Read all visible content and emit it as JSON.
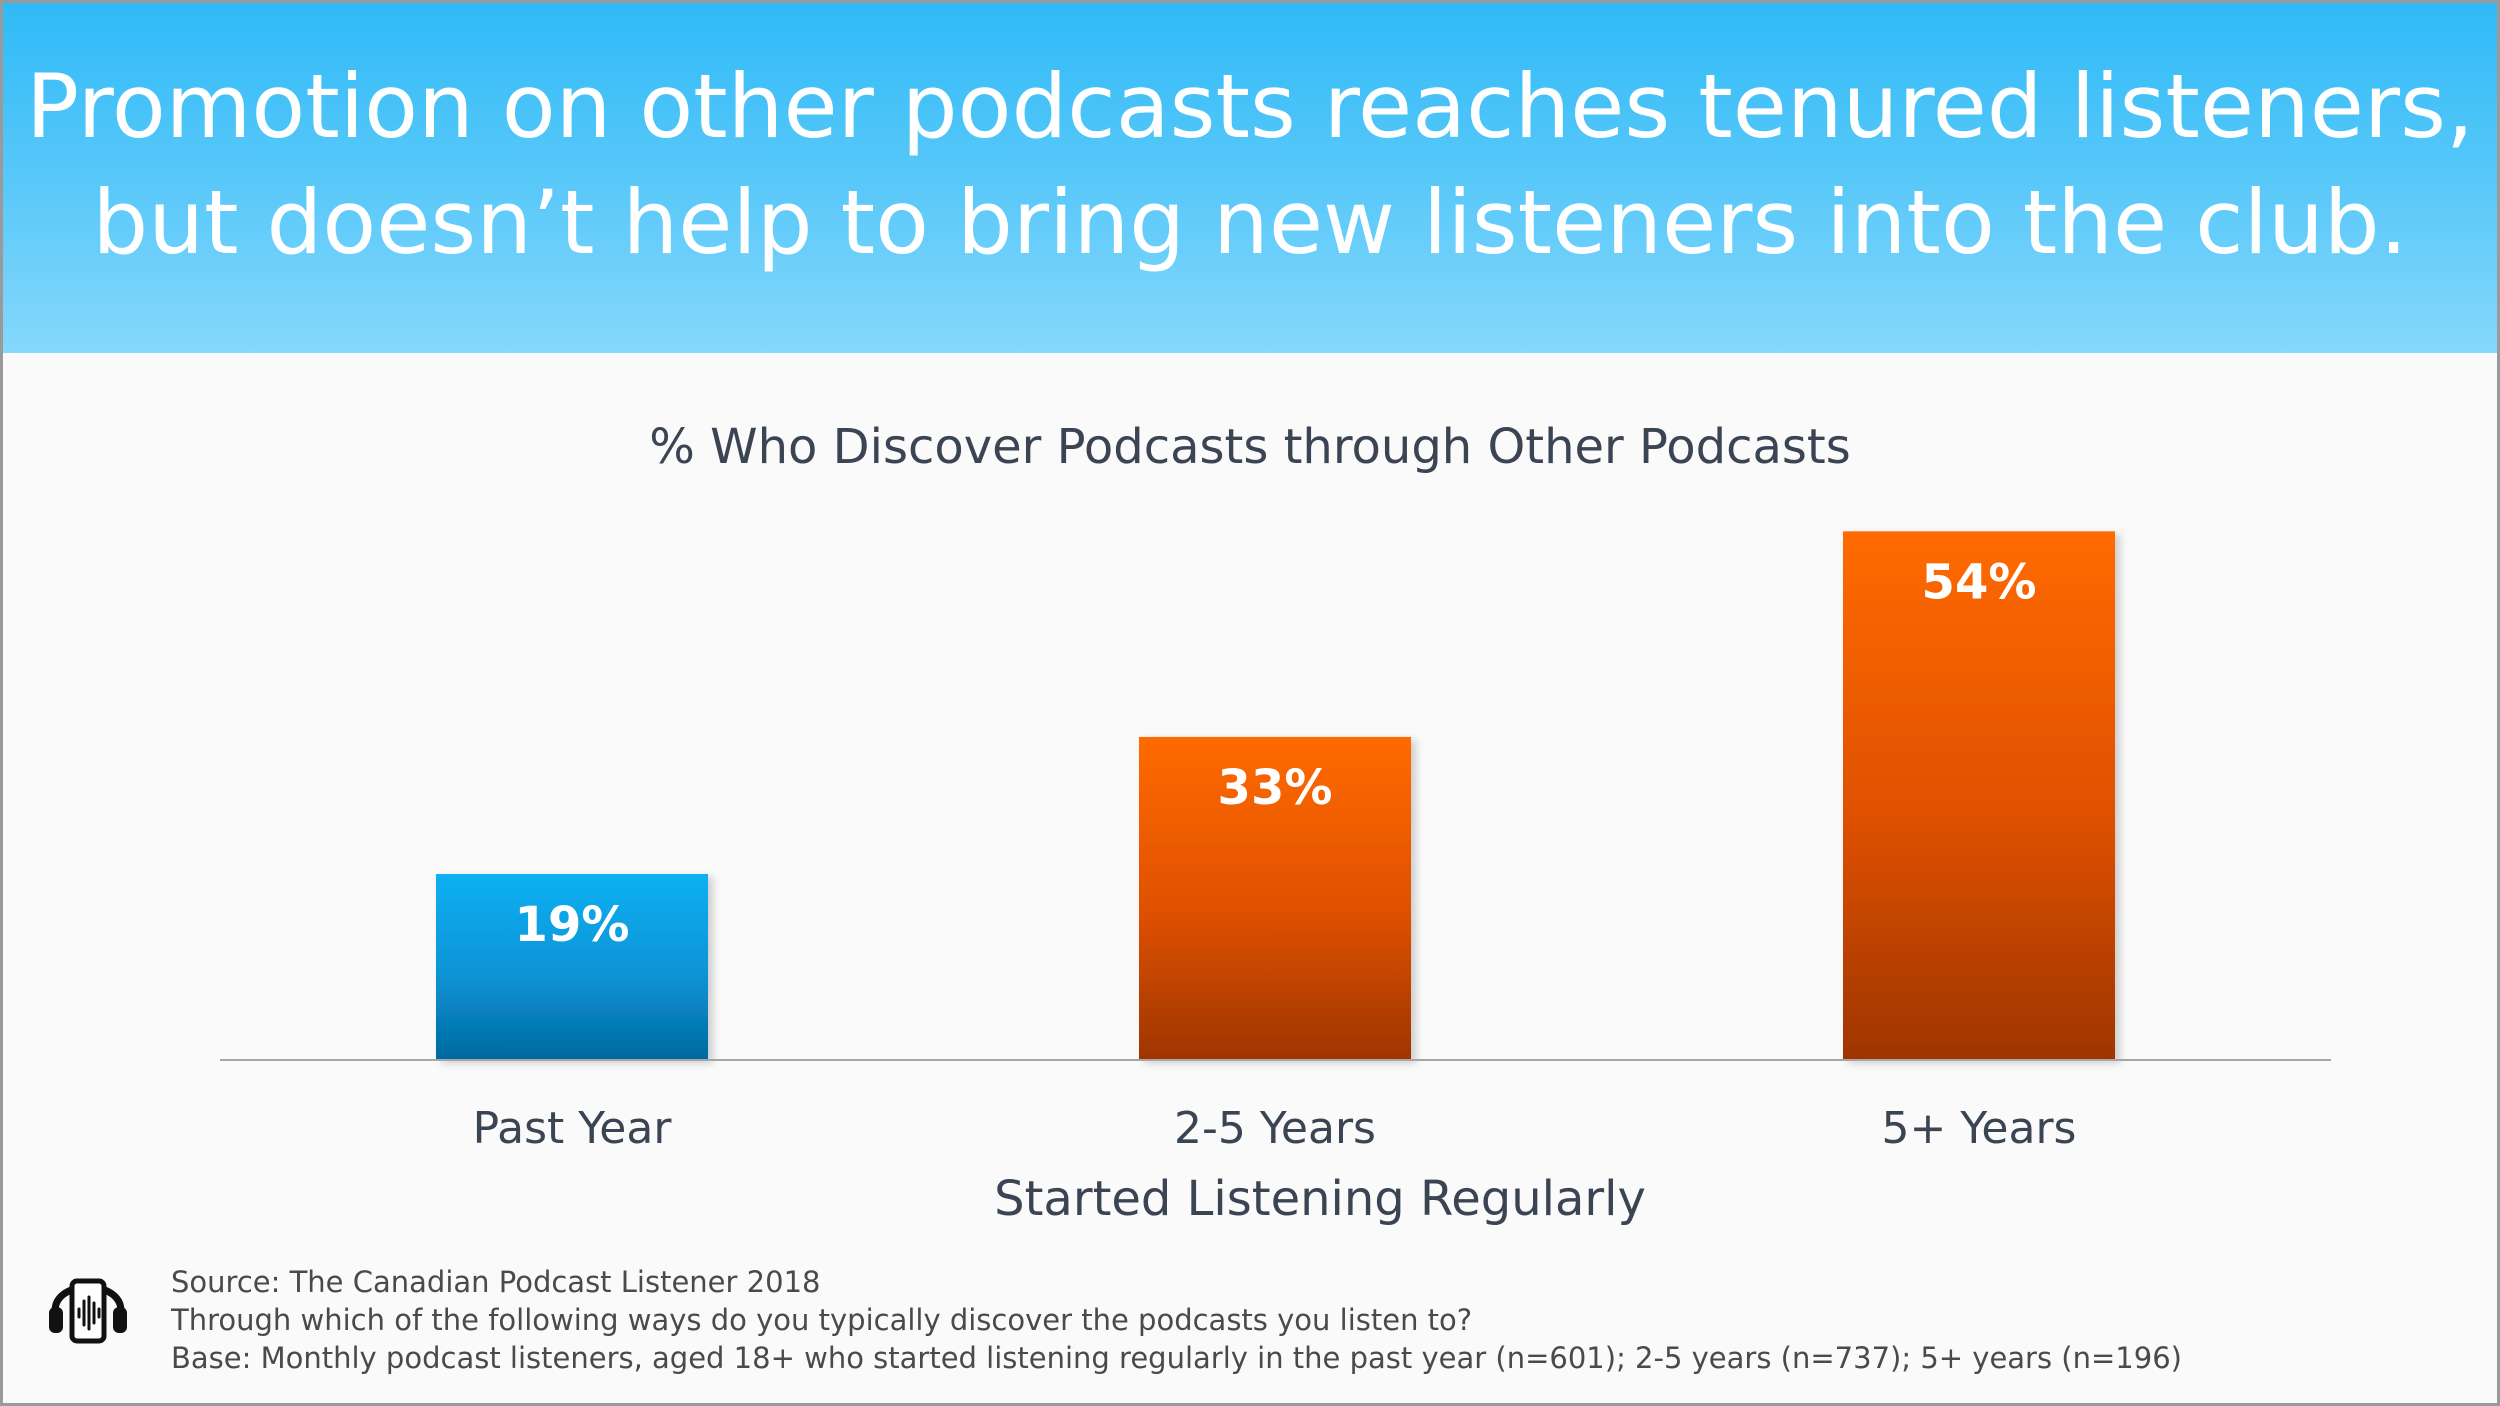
{
  "header": {
    "title_line1": "Promotion on other podcasts reaches tenured listeners,",
    "title_line2": "but doesn’t help to bring new listeners into the club."
  },
  "chart_data": {
    "type": "bar",
    "title": "% Who Discover Podcasts through Other Podcasts",
    "xlabel": "Started Listening Regularly",
    "ylabel": "",
    "categories": [
      "Past Year",
      "2-5 Years",
      "5+ Years"
    ],
    "values": [
      19,
      33,
      54
    ],
    "data_labels": [
      "19%",
      "33%",
      "54%"
    ],
    "ylim": [
      0,
      60
    ],
    "grid": false,
    "colors": [
      "#1aa3e8",
      "#f25c05",
      "#f25c05"
    ]
  },
  "footer": {
    "source": "Source:  The Canadian Podcast Listener 2018",
    "question": "Through which of the following ways do you typically discover the podcasts you listen to?",
    "base": "Base: Monthly podcast listeners, aged 18+ who started listening regularly in the past year (n=601); 2-5 years (n=737); 5+ years (n=196)"
  },
  "icons": {
    "logo": "headphones-phone-icon"
  }
}
